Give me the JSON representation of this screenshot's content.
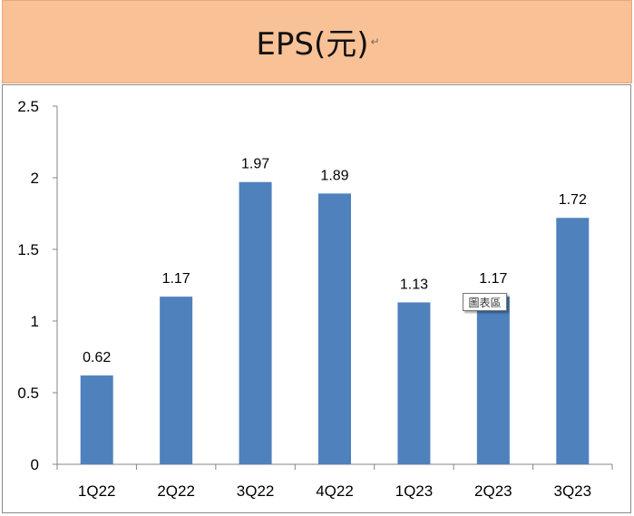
{
  "title": "EPS(元)",
  "return_mark": "↵",
  "tooltip": "圖表區",
  "colors": {
    "bar": "#4f81bd",
    "banner": "#f9c196",
    "axis": "#868686"
  },
  "chart_data": {
    "type": "bar",
    "title": "EPS(元)",
    "categories": [
      "1Q22",
      "2Q22",
      "3Q22",
      "4Q22",
      "1Q23",
      "2Q23",
      "3Q23"
    ],
    "values": [
      0.62,
      1.17,
      1.97,
      1.89,
      1.13,
      1.17,
      1.72
    ],
    "data_labels": [
      "0.62",
      "1.17",
      "1.97",
      "1.89",
      "1.13",
      "1.17",
      "1.72"
    ],
    "ylim": [
      0,
      2.5
    ],
    "yticks": [
      0,
      0.5,
      1,
      1.5,
      2,
      2.5
    ],
    "ytick_labels": [
      "0",
      "0.5",
      "1",
      "1.5",
      "2",
      "2.5"
    ],
    "xlabel": "",
    "ylabel": "",
    "grid": false,
    "legend": "none"
  }
}
